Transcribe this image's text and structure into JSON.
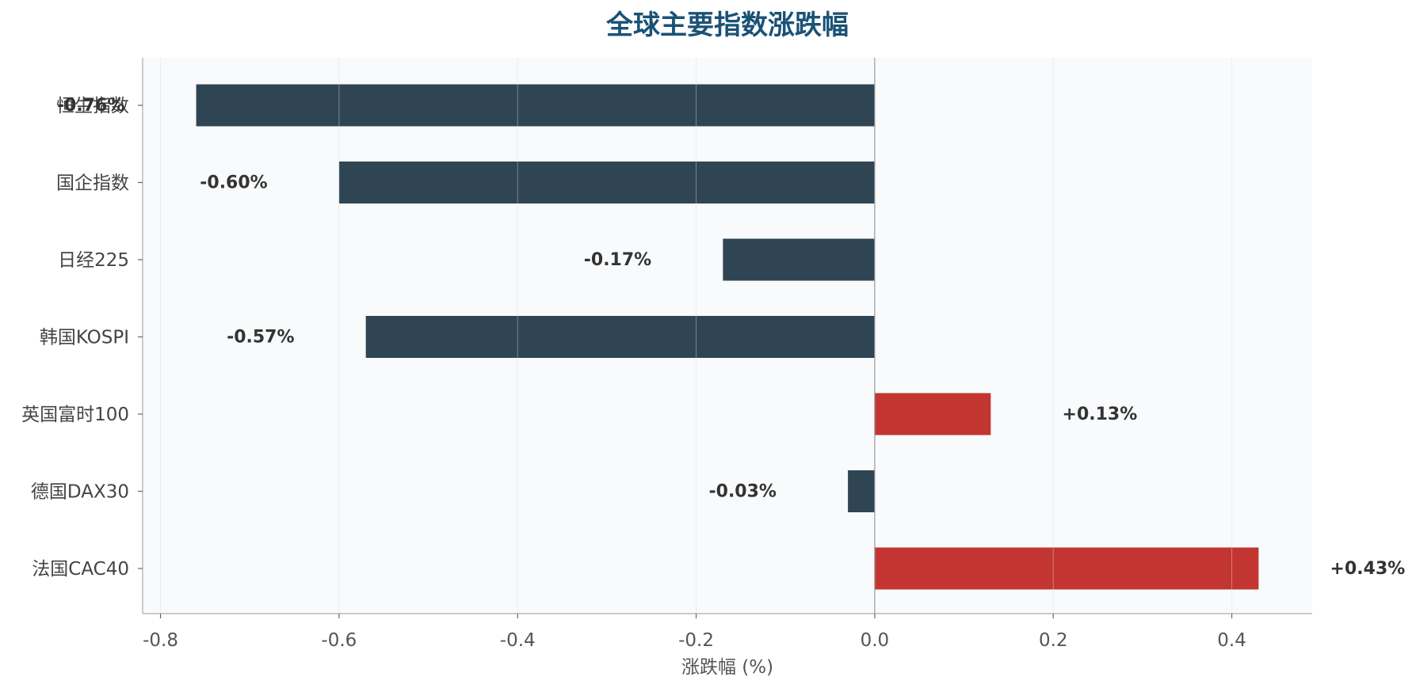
{
  "chart_data": {
    "type": "bar",
    "orientation": "horizontal",
    "title": "全球主要指数涨跌幅",
    "xlabel": "涨跌幅 (%)",
    "ylabel": "",
    "categories": [
      "恒生指数",
      "国企指数",
      "日经225",
      "韩国KOSPI",
      "英国富时100",
      "德国DAX30",
      "法国CAC40"
    ],
    "values": [
      -0.76,
      -0.6,
      -0.17,
      -0.57,
      0.13,
      -0.03,
      0.43
    ],
    "data_labels": [
      "-0.76%",
      "-0.60%",
      "-0.17%",
      "-0.57%",
      "+0.13%",
      "-0.03%",
      "+0.43%"
    ],
    "xlim": [
      -0.82,
      0.49
    ],
    "xticks": [
      -0.8,
      -0.6,
      -0.4,
      -0.2,
      0.0,
      0.2,
      0.4
    ],
    "xtick_labels": [
      "-0.8",
      "-0.6",
      "-0.4",
      "-0.2",
      "0.0",
      "0.2",
      "0.4"
    ],
    "grid": true,
    "legend": "none",
    "colors": {
      "positive": "#c23531",
      "negative": "#2f4554",
      "title": "#1a5276",
      "plot_background": "#f8fafc",
      "grid": "#e2e5e9",
      "axis": "#bbbbbb",
      "zero_line": "#999999"
    }
  }
}
